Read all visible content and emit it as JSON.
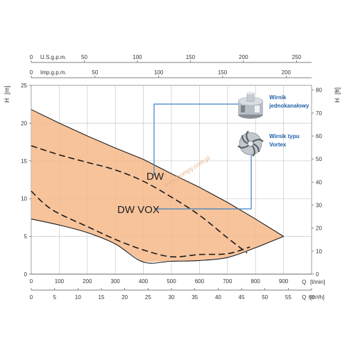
{
  "chart_data": {
    "type": "area",
    "x_unit": "Q [l/min]",
    "y_unit": "H [m]",
    "xlim": [
      0,
      1000
    ],
    "ylim": [
      0,
      25
    ],
    "x_ticks_lpm": [
      0,
      100,
      200,
      300,
      400,
      500,
      600,
      700,
      800,
      900
    ],
    "y_ticks_m": [
      0,
      5,
      10,
      15,
      20,
      25
    ],
    "right_axis": {
      "label": "H [ft]",
      "ticks": [
        0,
        10,
        20,
        30,
        40,
        50,
        60,
        70,
        80
      ]
    },
    "bottom_axis_m3h": {
      "label": "Q [m³/h]",
      "ticks": [
        0,
        5,
        10,
        15,
        20,
        25,
        30,
        35,
        40,
        45,
        50,
        55,
        60
      ]
    },
    "top_axis_usgpm": {
      "label": "U.S.g.p.m.",
      "ticks": [
        0,
        50,
        100,
        150,
        200,
        250
      ]
    },
    "top_axis_impgpm": {
      "label": "Imp.g.p.m.",
      "ticks": [
        0,
        50,
        100,
        150,
        200
      ]
    },
    "envelope": {
      "upper": {
        "x": [
          0,
          100,
          200,
          300,
          400,
          500,
          600,
          700,
          800,
          900
        ],
        "y": [
          21.8,
          20.0,
          18.3,
          16.7,
          15.2,
          13.3,
          11.5,
          9.5,
          7.3,
          5.0
        ]
      },
      "lower": {
        "x": [
          0,
          100,
          200,
          300,
          400,
          500,
          600,
          700,
          800,
          900
        ],
        "y": [
          7.3,
          6.5,
          5.5,
          4.0,
          1.6,
          1.7,
          1.8,
          2.2,
          3.5,
          5.0
        ]
      }
    },
    "series": [
      {
        "name": "DW",
        "style": "dashed",
        "x": [
          0,
          100,
          200,
          300,
          400,
          500,
          600,
          700,
          770
        ],
        "y": [
          17.0,
          15.8,
          14.8,
          13.8,
          12.3,
          10.2,
          7.8,
          4.8,
          2.8
        ]
      },
      {
        "name": "DW VOX",
        "style": "dashed",
        "x": [
          0,
          50,
          100,
          200,
          300,
          400,
          500,
          600,
          700,
          780
        ],
        "y": [
          11.0,
          9.2,
          8.0,
          6.3,
          4.6,
          3.2,
          2.3,
          2.6,
          2.7,
          3.6
        ]
      }
    ],
    "labels": {
      "dw": "DW",
      "dwvox": "DW VOX"
    },
    "colors": {
      "fill": "#f6b98a",
      "stroke": "#1a1a1a",
      "callout": "#3d7ec4"
    }
  },
  "legend": {
    "item1": {
      "line1": "Wirnik",
      "line2": "jednokanałowy",
      "icon": "single-channel-impeller"
    },
    "item2": {
      "line1": "Wirnik typu",
      "line2": "Vortex",
      "icon": "vortex-impeller"
    }
  },
  "axes": {
    "left": {
      "h": "H",
      "unit": "[m]"
    },
    "right": {
      "h": "H",
      "unit": "[ft]"
    },
    "bottom": {
      "q1": "Q",
      "unit1": "[l/min]",
      "q2": "Q",
      "unit2": "[m³/h]"
    },
    "top": {
      "usgpm": "U.S.g.p.m.",
      "impgpm": "Imp.g.p.m."
    }
  },
  "watermark": "www.pompy.com.pl"
}
